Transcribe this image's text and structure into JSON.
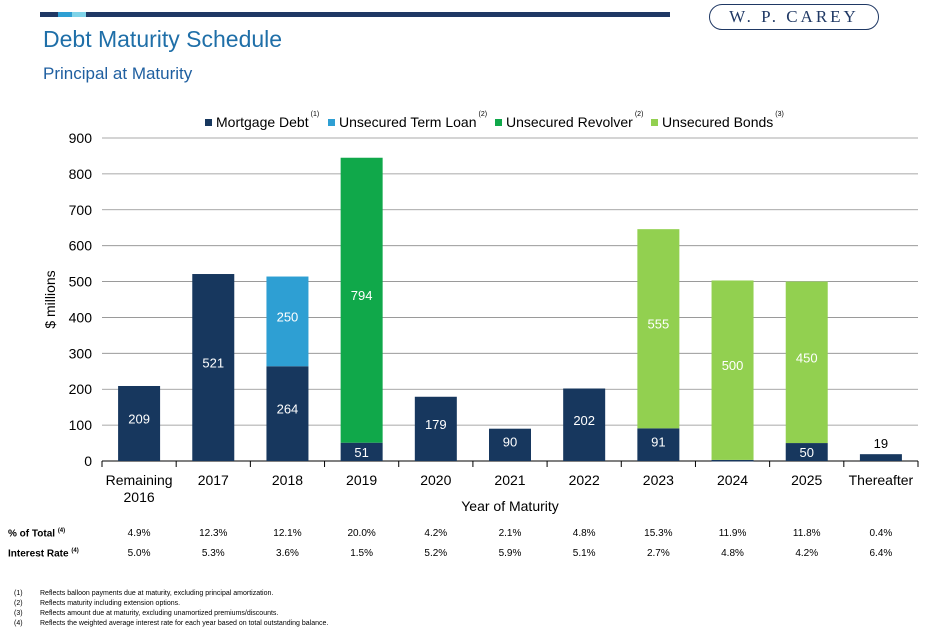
{
  "header": {
    "title": "Debt Maturity Schedule",
    "subtitle": "Principal at Maturity",
    "logo_text": "W. P. CAREY"
  },
  "colors": {
    "brand": "#1f3864",
    "title": "#1f6fa8",
    "mortgage": "#17375e",
    "term_loan": "#2e9fd3",
    "revolver": "#10a84a",
    "bonds": "#92d050"
  },
  "chart_data": {
    "type": "bar",
    "stacked": true,
    "ylabel": "$ millions",
    "xlabel": "Year of Maturity",
    "ylim": [
      0,
      900
    ],
    "yticks": [
      0,
      100,
      200,
      300,
      400,
      500,
      600,
      700,
      800,
      900
    ],
    "grid": true,
    "legend_position": "top",
    "categories": [
      "Remaining\n2016",
      "2017",
      "2018",
      "2019",
      "2020",
      "2021",
      "2022",
      "2023",
      "2024",
      "2025",
      "Thereafter"
    ],
    "series": [
      {
        "name": "Mortgage Debt",
        "note": "(1)",
        "color": "#17375e",
        "values": [
          209,
          521,
          264,
          51,
          179,
          90,
          202,
          91,
          3,
          50,
          19
        ]
      },
      {
        "name": "Unsecured Term Loan",
        "note": "(2)",
        "color": "#2e9fd3",
        "values": [
          0,
          0,
          250,
          0,
          0,
          0,
          0,
          0,
          0,
          0,
          0
        ]
      },
      {
        "name": "Unsecured Revolver",
        "note": "(2)",
        "color": "#10a84a",
        "values": [
          0,
          0,
          0,
          794,
          0,
          0,
          0,
          0,
          0,
          0,
          0
        ]
      },
      {
        "name": "Unsecured Bonds",
        "note": "(3)",
        "color": "#92d050",
        "values": [
          0,
          0,
          0,
          0,
          0,
          0,
          0,
          555,
          500,
          450,
          0
        ]
      }
    ]
  },
  "stats": {
    "pct_total": {
      "label": "% of Total",
      "note": "(4)",
      "values": [
        "4.9%",
        "12.3%",
        "12.1%",
        "20.0%",
        "4.2%",
        "2.1%",
        "4.8%",
        "15.3%",
        "11.9%",
        "11.8%",
        "0.4%"
      ]
    },
    "interest_rate": {
      "label": "Interest Rate",
      "note": "(4)",
      "values": [
        "5.0%",
        "5.3%",
        "3.6%",
        "1.5%",
        "5.2%",
        "5.9%",
        "5.1%",
        "2.7%",
        "4.8%",
        "4.2%",
        "6.4%"
      ]
    }
  },
  "footnotes": [
    {
      "num": "(1)",
      "text": "Reflects balloon payments due at maturity, excluding principal amortization."
    },
    {
      "num": "(2)",
      "text": "Reflects maturity including extension options."
    },
    {
      "num": "(3)",
      "text": "Reflects amount due at maturity, excluding unamortized premiums/discounts."
    },
    {
      "num": "(4)",
      "text": "Reflects the weighted average interest rate for each year based on total outstanding balance."
    }
  ]
}
